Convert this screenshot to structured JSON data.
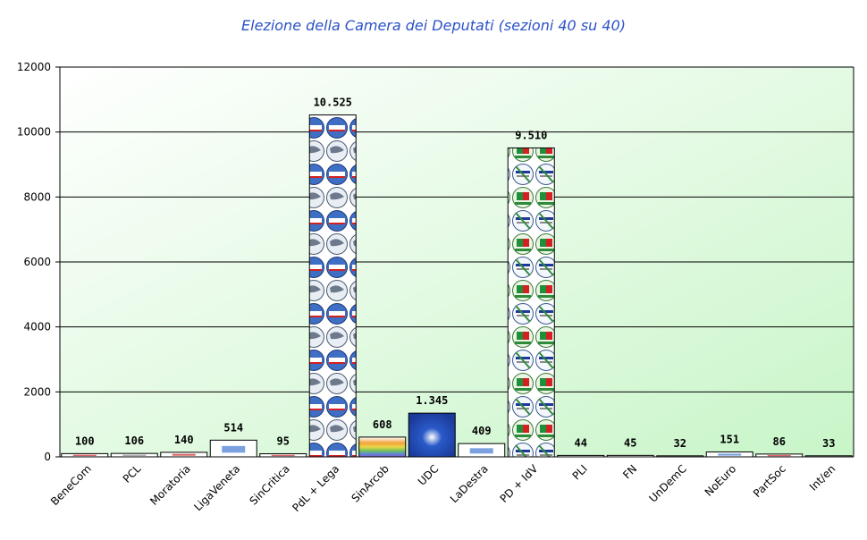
{
  "chart_data": {
    "type": "bar",
    "title": "Elezione della Camera dei Deputati (sezioni 40 su 40)",
    "xlabel": "",
    "ylabel": "",
    "ylim": [
      0,
      12000
    ],
    "yticks": [
      0,
      2000,
      4000,
      6000,
      8000,
      10000,
      12000
    ],
    "grid": true,
    "categories": [
      "BeneCom",
      "PCL",
      "Moratoria",
      "LigaVeneta",
      "SinCritica",
      "PdL + Lega",
      "SinArcob",
      "UDC",
      "LaDestra",
      "PD + IdV",
      "PLI",
      "FN",
      "UnDemC",
      "NoEuro",
      "PartSoc",
      "Int/en"
    ],
    "values": [
      100,
      106,
      140,
      514,
      95,
      10525,
      608,
      1345,
      409,
      9510,
      44,
      45,
      32,
      151,
      86,
      33
    ],
    "labels": [
      "100",
      "106",
      "140",
      "514",
      "95",
      "10.525",
      "608",
      "1.345",
      "409",
      "9.510",
      "44",
      "45",
      "32",
      "151",
      "86",
      "33"
    ],
    "bar_styles": [
      "red",
      "gray",
      "red",
      "blue",
      "red",
      "pdl",
      "rainbow",
      "udc",
      "blue",
      "pd",
      "gray",
      "gray",
      "dark",
      "blue",
      "red",
      "gray"
    ],
    "colors": {
      "background_start": "#ffffff",
      "background_end": "#c8f5c8",
      "title": "#2b52c7",
      "grid": "#000000"
    }
  }
}
